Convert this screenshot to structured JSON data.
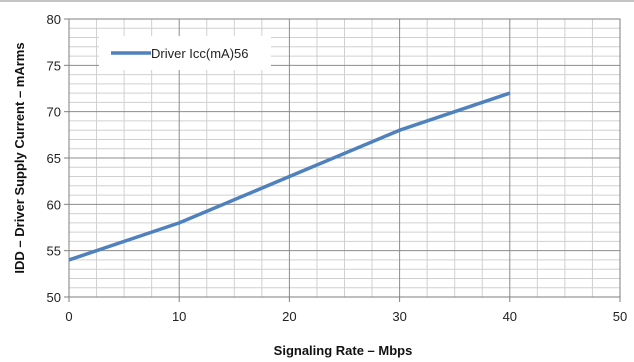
{
  "chart_data": {
    "type": "line",
    "title": "",
    "xlabel": "Signaling Rate – Mbps",
    "ylabel": "IDD – Driver Supply Current – mArms",
    "xlim": [
      0,
      50
    ],
    "ylim": [
      50,
      80
    ],
    "x_major_ticks": [
      0,
      10,
      20,
      30,
      40,
      50
    ],
    "y_major_ticks": [
      50,
      55,
      60,
      65,
      70,
      75,
      80
    ],
    "x_minor_step": 2.5,
    "y_minor_step": 1,
    "grid": true,
    "legend_position": "top-left",
    "series": [
      {
        "name": "Driver Icc(mA)56",
        "color": "#4f81bd",
        "x": [
          0,
          10,
          20,
          30,
          40
        ],
        "y": [
          54,
          58,
          63,
          68,
          72
        ]
      }
    ]
  }
}
